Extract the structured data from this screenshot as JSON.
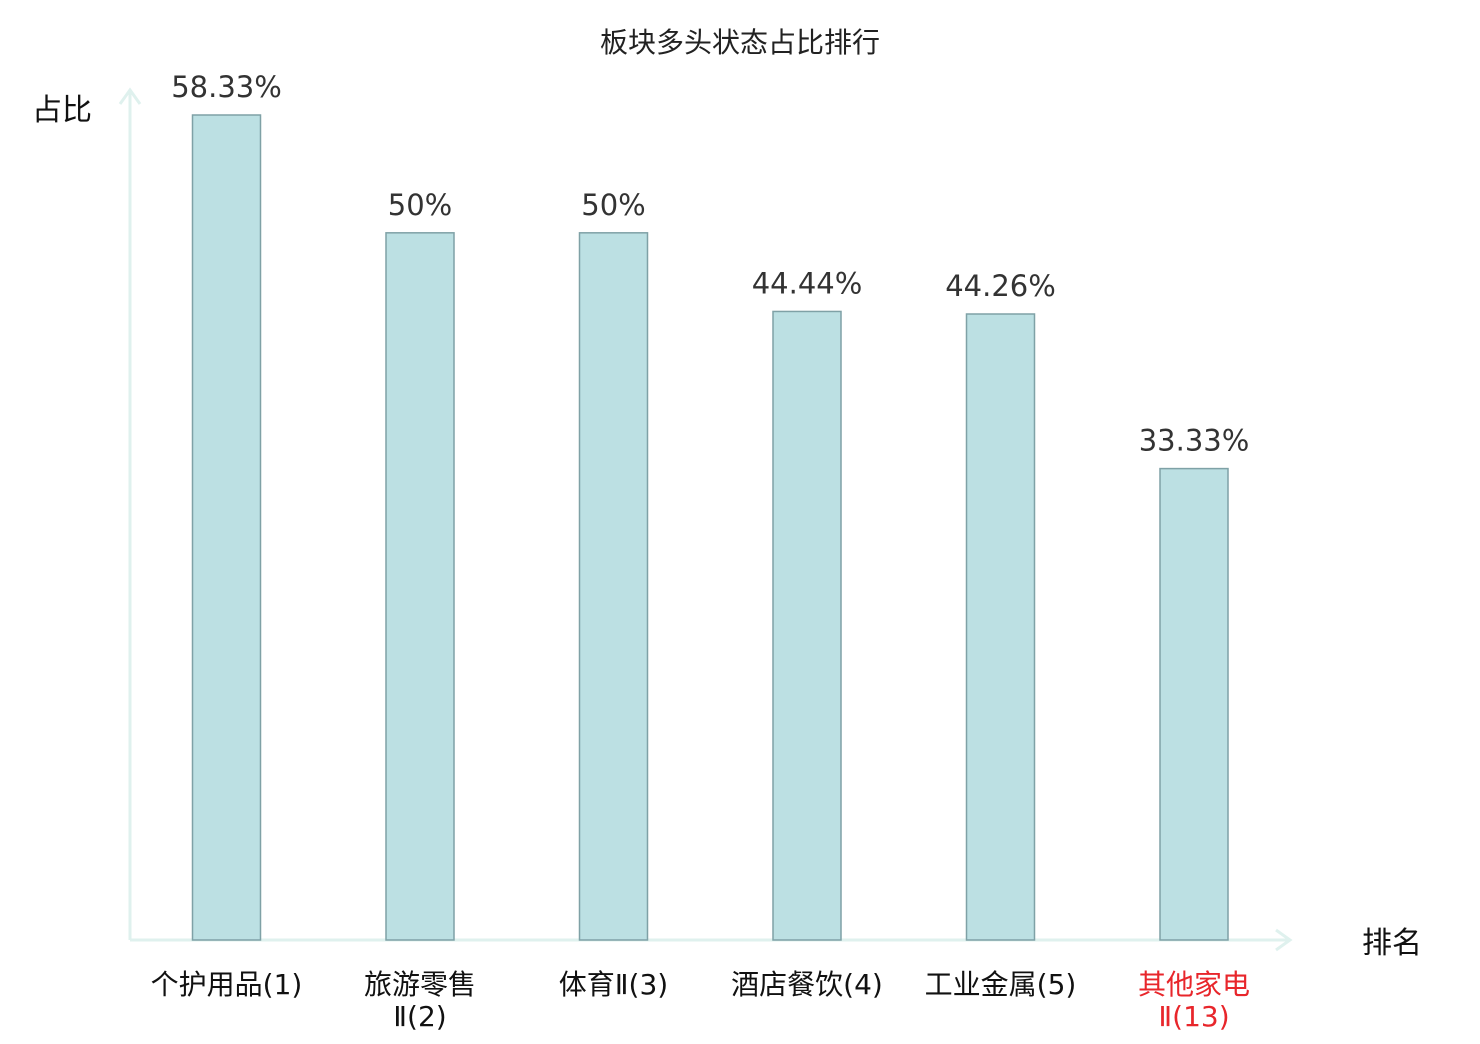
{
  "chart_data": {
    "type": "bar",
    "title": "板块多头状态占比排行",
    "ylabel": "占比",
    "xlabel": "排名",
    "ylim": [
      0,
      60
    ],
    "grid": false,
    "categories": [
      [
        "个护用品(1)"
      ],
      [
        "旅游零售",
        "Ⅱ(2)"
      ],
      [
        "体育Ⅱ(3)"
      ],
      [
        "酒店餐饮(4)"
      ],
      [
        "工业金属(5)"
      ],
      [
        "其他家电",
        "Ⅱ(13)"
      ]
    ],
    "values": [
      58.33,
      50,
      50,
      44.44,
      44.26,
      33.33
    ],
    "value_labels": [
      "58.33%",
      "50%",
      "50%",
      "44.44%",
      "44.26%",
      "33.33%"
    ],
    "highlight_index": 5,
    "colors": {
      "bar_fill": "#bce0e3",
      "bar_stroke": "#7fa1a6",
      "axis": "#dff1ee",
      "text": "#333333",
      "highlight_text": "#e8262b"
    }
  }
}
